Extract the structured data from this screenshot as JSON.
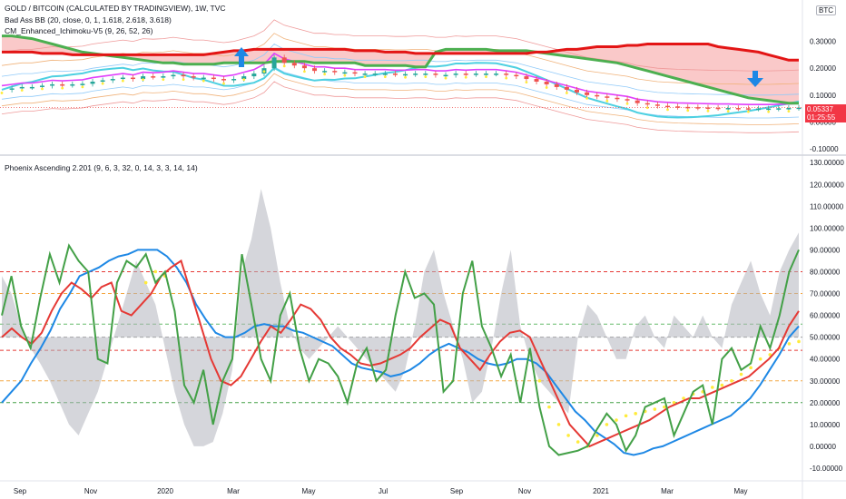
{
  "header": {
    "title": "GOLD / BITCOIN (CALCULATED BY TRADINGVIEW), 1W, TVC",
    "indicator1": "Bad Ass BB (20, close, 0, 1, 1.618, 2.618, 3.618)",
    "indicator2": "CM_Enhanced_Ichimoku-V5 (9, 26, 52, 26)",
    "oscillator_title": "Phoenix Ascending 2.201 (9, 6, 3, 32, 0, 14, 3, 3, 14, 14)",
    "currency_badge": "BTC"
  },
  "price_badge": {
    "value": "0.05337",
    "countdown": "01:25:55",
    "color": "#f23645"
  },
  "colors": {
    "green_line": "#43a047",
    "red_line": "#e53935",
    "blue_line": "#1e88e5",
    "grey_area": "#b2b5be",
    "yellow_dots": "#ffeb3b",
    "cloud_red": "#f7a5a5",
    "kijun_red": "#e31515",
    "kumo_green": "#4caf50",
    "cyan": "#4dd0e1",
    "magenta": "#e040fb",
    "candle_up": "#26a69a",
    "candle_down": "#ef5350"
  },
  "chart_data": [
    {
      "type": "line",
      "title": "GOLD / BITCOIN (CALCULATED BY TRADINGVIEW), 1W, TVC",
      "y_ticks": [
        "0.30000",
        "0.20000",
        "0.10000",
        "0.00000",
        "-0.10000"
      ],
      "y_tick_values": [
        0.3,
        0.2,
        0.1,
        0.0,
        -0.1
      ],
      "ylim": [
        -0.12,
        0.42
      ],
      "last_price": 0.05337,
      "series": [
        {
          "name": "",
          "role": "price",
          "values": [
            0.12,
            0.125,
            0.13,
            0.13,
            0.135,
            0.14,
            0.138,
            0.14,
            0.142,
            0.15,
            0.155,
            0.16,
            0.165,
            0.16,
            0.17,
            0.168,
            0.17,
            0.175,
            0.17,
            0.165,
            0.165,
            0.16,
            0.155,
            0.16,
            0.17,
            0.18,
            0.2,
            0.24,
            0.22,
            0.21,
            0.2,
            0.19,
            0.19,
            0.185,
            0.185,
            0.18,
            0.18,
            0.18,
            0.18,
            0.178,
            0.178,
            0.18,
            0.18,
            0.175,
            0.175,
            0.18,
            0.178,
            0.18,
            0.18,
            0.18,
            0.175,
            0.17,
            0.16,
            0.15,
            0.14,
            0.13,
            0.12,
            0.11,
            0.1,
            0.095,
            0.09,
            0.085,
            0.08,
            0.07,
            0.065,
            0.06,
            0.058,
            0.056,
            0.055,
            0.054,
            0.053,
            0.052,
            0.052,
            0.051,
            0.05,
            0.05,
            0.05,
            0.051,
            0.052,
            0.05337
          ]
        },
        {
          "name": "",
          "role": "ichimoku-span-a",
          "values": [
            0.32,
            0.32,
            0.315,
            0.31,
            0.3,
            0.29,
            0.28,
            0.27,
            0.26,
            0.255,
            0.25,
            0.245,
            0.24,
            0.235,
            0.23,
            0.225,
            0.22,
            0.22,
            0.215,
            0.215,
            0.215,
            0.215,
            0.22,
            0.22,
            0.22,
            0.22,
            0.22,
            0.225,
            0.225,
            0.225,
            0.225,
            0.22,
            0.22,
            0.22,
            0.22,
            0.22,
            0.21,
            0.21,
            0.21,
            0.21,
            0.21,
            0.205,
            0.205,
            0.26,
            0.27,
            0.27,
            0.27,
            0.27,
            0.27,
            0.265,
            0.265,
            0.265,
            0.265,
            0.26,
            0.255,
            0.25,
            0.245,
            0.24,
            0.235,
            0.23,
            0.225,
            0.22,
            0.21,
            0.2,
            0.19,
            0.18,
            0.17,
            0.16,
            0.15,
            0.14,
            0.13,
            0.12,
            0.11,
            0.1,
            0.09,
            0.085,
            0.08,
            0.075,
            0.07,
            0.07
          ]
        },
        {
          "name": "",
          "role": "ichimoku-span-b",
          "values": [
            0.26,
            0.26,
            0.26,
            0.26,
            0.255,
            0.255,
            0.255,
            0.25,
            0.25,
            0.25,
            0.25,
            0.25,
            0.25,
            0.25,
            0.25,
            0.25,
            0.25,
            0.25,
            0.25,
            0.25,
            0.25,
            0.255,
            0.26,
            0.265,
            0.265,
            0.27,
            0.27,
            0.27,
            0.27,
            0.27,
            0.27,
            0.27,
            0.27,
            0.27,
            0.27,
            0.265,
            0.265,
            0.265,
            0.26,
            0.26,
            0.26,
            0.255,
            0.255,
            0.255,
            0.255,
            0.255,
            0.255,
            0.255,
            0.255,
            0.255,
            0.255,
            0.255,
            0.255,
            0.26,
            0.26,
            0.265,
            0.27,
            0.27,
            0.275,
            0.28,
            0.28,
            0.28,
            0.285,
            0.285,
            0.29,
            0.29,
            0.29,
            0.29,
            0.29,
            0.29,
            0.29,
            0.28,
            0.275,
            0.27,
            0.265,
            0.26,
            0.25,
            0.24,
            0.23,
            0.23
          ]
        }
      ]
    },
    {
      "type": "line",
      "title": "Phoenix Ascending 2.201 (9, 6, 3, 32, 0, 14, 3, 3, 14, 14)",
      "x_ticks": [
        "Sep",
        "Nov",
        "2020",
        "Mar",
        "May",
        "Jul",
        "Sep",
        "Nov",
        "2021",
        "Mar",
        "May"
      ],
      "y_ticks": [
        "130.00000",
        "120.00000",
        "110.00000",
        "100.00000",
        "90.00000",
        "80.00000",
        "70.00000",
        "60.00000",
        "50.00000",
        "40.00000",
        "30.00000",
        "20.00000",
        "10.00000",
        "0.00000",
        "-10.00000"
      ],
      "y_tick_values": [
        130,
        120,
        110,
        100,
        90,
        80,
        70,
        60,
        50,
        40,
        30,
        20,
        10,
        0,
        -10
      ],
      "ylim": [
        -15,
        133
      ],
      "reference_levels": [
        80,
        70,
        56,
        50,
        44,
        30,
        20
      ],
      "series": [
        {
          "name": "",
          "role": "green",
          "values": [
            60,
            78,
            55,
            45,
            68,
            88,
            75,
            92,
            85,
            80,
            40,
            38,
            75,
            85,
            82,
            88,
            75,
            80,
            62,
            28,
            20,
            35,
            10,
            30,
            40,
            88,
            65,
            40,
            30,
            60,
            70,
            45,
            30,
            40,
            38,
            32,
            20,
            38,
            45,
            30,
            35,
            60,
            80,
            68,
            70,
            65,
            25,
            30,
            70,
            85,
            55,
            45,
            32,
            42,
            20,
            45,
            18,
            0,
            -4,
            -3,
            -2,
            0,
            8,
            15,
            10,
            -2,
            5,
            18,
            20,
            22,
            5,
            15,
            25,
            28,
            10,
            40,
            45,
            35,
            38,
            55,
            45,
            60,
            80,
            90
          ]
        },
        {
          "name": "",
          "role": "red",
          "values": [
            50,
            54,
            50,
            47,
            52,
            62,
            70,
            75,
            72,
            68,
            73,
            75,
            62,
            60,
            65,
            70,
            78,
            82,
            85,
            70,
            55,
            40,
            30,
            28,
            32,
            40,
            48,
            55,
            52,
            58,
            65,
            63,
            58,
            50,
            45,
            42,
            38,
            37,
            38,
            40,
            42,
            45,
            50,
            54,
            58,
            56,
            45,
            40,
            35,
            42,
            48,
            52,
            53,
            50,
            40,
            30,
            20,
            10,
            5,
            0,
            2,
            4,
            6,
            8,
            10,
            12,
            15,
            18,
            20,
            22,
            22,
            24,
            26,
            28,
            30,
            32,
            36,
            40,
            45,
            55,
            62
          ]
        },
        {
          "name": "",
          "role": "blue",
          "values": [
            20,
            25,
            30,
            38,
            45,
            53,
            63,
            70,
            78,
            80,
            82,
            85,
            87,
            88,
            90,
            90,
            90,
            87,
            82,
            75,
            65,
            58,
            52,
            50,
            50,
            52,
            55,
            56,
            55,
            55,
            53,
            52,
            50,
            48,
            46,
            42,
            38,
            36,
            35,
            34,
            32,
            33,
            35,
            38,
            42,
            45,
            47,
            45,
            43,
            40,
            38,
            37,
            38,
            40,
            40,
            38,
            34,
            28,
            22,
            16,
            12,
            7,
            4,
            1,
            -3,
            -4,
            -3,
            -1,
            0,
            2,
            4,
            6,
            8,
            10,
            12,
            14,
            18,
            22,
            28,
            35,
            42,
            50,
            55
          ]
        },
        {
          "name": "",
          "role": "grey-area",
          "values": [
            78,
            70,
            55,
            45,
            38,
            30,
            20,
            10,
            5,
            15,
            25,
            40,
            55,
            70,
            85,
            75,
            65,
            45,
            25,
            10,
            0,
            0,
            2,
            15,
            35,
            80,
            95,
            118,
            100,
            75,
            55,
            45,
            40,
            45,
            50,
            55,
            50,
            45,
            40,
            35,
            30,
            25,
            35,
            55,
            80,
            90,
            70,
            55,
            40,
            20,
            25,
            45,
            70,
            90,
            55,
            40,
            30,
            25,
            20,
            15,
            50,
            65,
            60,
            50,
            40,
            40,
            55,
            60,
            50,
            45,
            60,
            55,
            50,
            60,
            50,
            45,
            65,
            75,
            85,
            70,
            60,
            80,
            90,
            98
          ]
        },
        {
          "name": "",
          "role": "yellow-dots",
          "values": [
            null,
            null,
            null,
            null,
            null,
            null,
            null,
            null,
            null,
            null,
            null,
            null,
            null,
            null,
            null,
            75,
            80,
            78,
            null,
            null,
            null,
            null,
            null,
            null,
            null,
            null,
            null,
            null,
            null,
            null,
            null,
            null,
            null,
            null,
            null,
            null,
            null,
            null,
            null,
            null,
            null,
            null,
            null,
            null,
            null,
            null,
            null,
            null,
            null,
            null,
            null,
            null,
            null,
            null,
            null,
            null,
            30,
            18,
            10,
            5,
            2,
            0,
            5,
            10,
            12,
            14,
            15,
            16,
            17,
            18,
            20,
            22,
            24,
            25,
            27,
            28,
            30,
            33,
            36,
            40,
            42,
            45,
            47,
            48
          ]
        }
      ]
    }
  ]
}
